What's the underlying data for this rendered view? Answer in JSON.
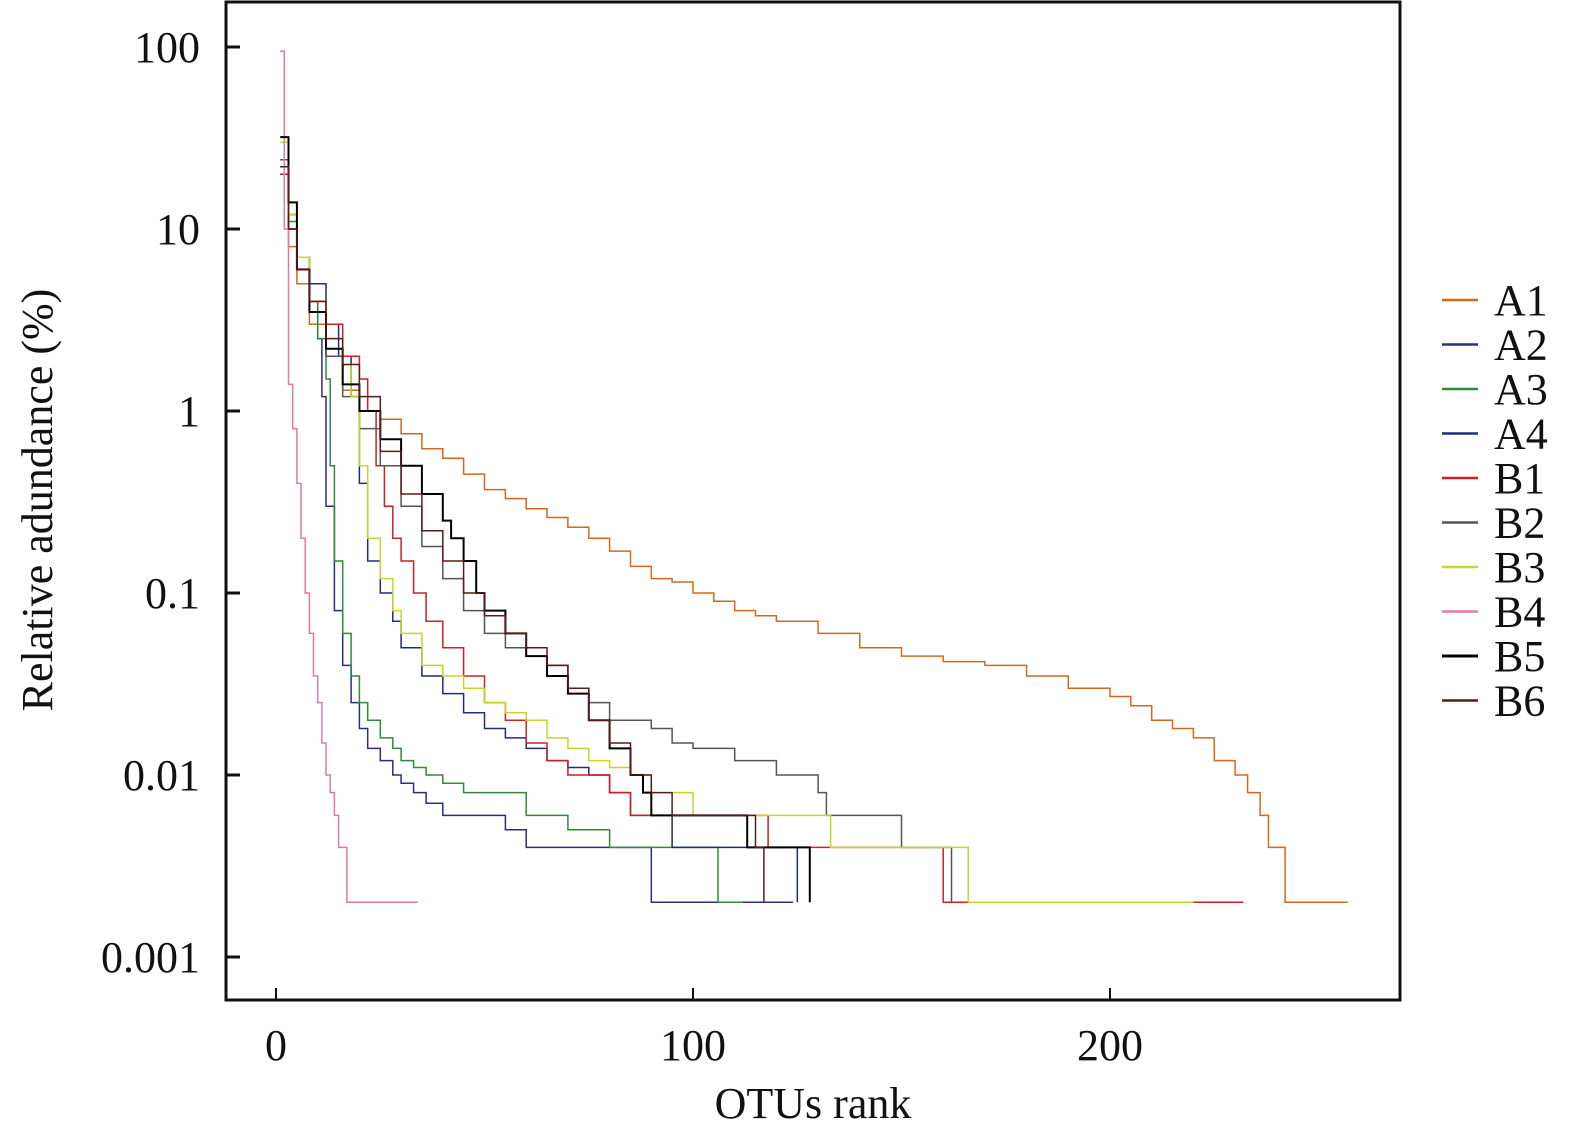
{
  "chart_data": {
    "type": "line",
    "title": "",
    "xlabel": "OTUs rank",
    "ylabel": "Relative adundance (%)",
    "xlim": [
      -12,
      270
    ],
    "ylim": [
      0.0005,
      180
    ],
    "yscale": "log",
    "xticks": [
      0,
      100,
      200
    ],
    "xtick_labels": [
      "0",
      "100",
      "200"
    ],
    "yticks": [
      100,
      10,
      1,
      0.1,
      0.01,
      0.001
    ],
    "ytick_labels": [
      "100",
      "10",
      "1",
      "0.1",
      "0.01",
      "0.001"
    ],
    "grid": false,
    "legend_position": "right",
    "step": true,
    "series": [
      {
        "name": "A1",
        "color": "#d2691e",
        "x": [
          1,
          3,
          5,
          8,
          12,
          16,
          20,
          25,
          30,
          35,
          40,
          45,
          50,
          55,
          60,
          65,
          70,
          75,
          80,
          85,
          90,
          95,
          100,
          105,
          110,
          115,
          120,
          130,
          140,
          150,
          160,
          170,
          180,
          190,
          200,
          205,
          210,
          215,
          220,
          225,
          230,
          233,
          236,
          238,
          240,
          242,
          257
        ],
        "y": [
          20,
          8,
          5,
          3,
          2,
          1.3,
          1.0,
          0.9,
          0.75,
          0.62,
          0.55,
          0.45,
          0.37,
          0.33,
          0.29,
          0.26,
          0.23,
          0.2,
          0.17,
          0.14,
          0.12,
          0.115,
          0.1,
          0.09,
          0.08,
          0.075,
          0.07,
          0.06,
          0.05,
          0.045,
          0.042,
          0.04,
          0.035,
          0.03,
          0.027,
          0.024,
          0.02,
          0.018,
          0.016,
          0.012,
          0.01,
          0.008,
          0.006,
          0.004,
          0.004,
          0.002,
          0.002
        ]
      },
      {
        "name": "A2",
        "color": "#2b2f7e",
        "x": [
          1,
          3,
          5,
          8,
          10,
          11,
          12,
          14,
          16,
          18,
          20,
          22,
          25,
          28,
          30,
          33,
          36,
          40,
          45,
          50,
          55,
          60,
          70,
          80,
          90,
          100,
          108,
          115,
          124
        ],
        "y": [
          22,
          10,
          6,
          4,
          2.5,
          1.2,
          0.3,
          0.08,
          0.04,
          0.025,
          0.018,
          0.014,
          0.012,
          0.01,
          0.009,
          0.008,
          0.007,
          0.006,
          0.006,
          0.006,
          0.005,
          0.004,
          0.004,
          0.004,
          0.002,
          0.002,
          0.002,
          0.002,
          0.002
        ]
      },
      {
        "name": "A3",
        "color": "#2e8b3a",
        "x": [
          1,
          3,
          5,
          8,
          10,
          12,
          13,
          14,
          16,
          18,
          20,
          22,
          25,
          28,
          30,
          33,
          36,
          40,
          45,
          50,
          55,
          60,
          65,
          70,
          80,
          90,
          100,
          106,
          112
        ],
        "y": [
          22,
          11,
          7,
          4,
          2.5,
          1.5,
          0.5,
          0.15,
          0.06,
          0.035,
          0.025,
          0.02,
          0.016,
          0.014,
          0.012,
          0.011,
          0.01,
          0.009,
          0.008,
          0.008,
          0.008,
          0.006,
          0.006,
          0.005,
          0.004,
          0.004,
          0.004,
          0.002,
          0.002
        ]
      },
      {
        "name": "A4",
        "color": "#1f2d7a",
        "x": [
          1,
          3,
          5,
          8,
          12,
          15,
          18,
          20,
          22,
          25,
          28,
          30,
          35,
          40,
          45,
          50,
          55,
          60,
          65,
          70,
          75,
          80,
          85,
          90,
          95,
          100,
          110,
          120,
          125
        ],
        "y": [
          20,
          12,
          7,
          5,
          3,
          2,
          1.2,
          0.4,
          0.15,
          0.1,
          0.07,
          0.05,
          0.035,
          0.028,
          0.022,
          0.018,
          0.016,
          0.014,
          0.012,
          0.011,
          0.01,
          0.008,
          0.006,
          0.006,
          0.004,
          0.004,
          0.004,
          0.004,
          0.002
        ]
      },
      {
        "name": "B1",
        "color": "#cc2027",
        "x": [
          1,
          3,
          5,
          8,
          12,
          16,
          20,
          22,
          24,
          26,
          28,
          30,
          33,
          36,
          40,
          45,
          50,
          55,
          60,
          65,
          70,
          75,
          80,
          85,
          90,
          100,
          110,
          118,
          150,
          160,
          200,
          232
        ],
        "y": [
          20,
          10,
          6,
          4,
          3,
          2,
          1.5,
          1.0,
          0.5,
          0.3,
          0.2,
          0.15,
          0.1,
          0.07,
          0.05,
          0.035,
          0.025,
          0.02,
          0.015,
          0.012,
          0.01,
          0.01,
          0.008,
          0.006,
          0.006,
          0.006,
          0.006,
          0.004,
          0.004,
          0.002,
          0.002,
          0.002
        ]
      },
      {
        "name": "B2",
        "color": "#555555",
        "x": [
          1,
          3,
          5,
          8,
          12,
          16,
          20,
          25,
          30,
          35,
          40,
          45,
          50,
          55,
          60,
          65,
          70,
          75,
          80,
          85,
          90,
          95,
          100,
          110,
          120,
          130,
          132,
          140,
          146,
          150,
          160,
          162
        ],
        "y": [
          24,
          12,
          6,
          3.5,
          2,
          1.2,
          0.8,
          0.5,
          0.3,
          0.18,
          0.12,
          0.08,
          0.06,
          0.05,
          0.045,
          0.04,
          0.03,
          0.025,
          0.02,
          0.02,
          0.018,
          0.015,
          0.014,
          0.012,
          0.01,
          0.008,
          0.006,
          0.006,
          0.006,
          0.004,
          0.004,
          0.002
        ]
      },
      {
        "name": "B3",
        "color": "#c8d42a",
        "x": [
          1,
          3,
          5,
          8,
          12,
          16,
          18,
          20,
          22,
          25,
          28,
          30,
          35,
          40,
          45,
          50,
          55,
          60,
          65,
          70,
          75,
          80,
          85,
          90,
          100,
          110,
          120,
          133,
          140,
          160,
          166,
          200,
          220
        ],
        "y": [
          30,
          12,
          7,
          4,
          2.5,
          1.8,
          1.2,
          0.5,
          0.2,
          0.12,
          0.08,
          0.06,
          0.04,
          0.035,
          0.03,
          0.025,
          0.022,
          0.02,
          0.016,
          0.014,
          0.012,
          0.011,
          0.01,
          0.008,
          0.006,
          0.006,
          0.006,
          0.004,
          0.004,
          0.004,
          0.002,
          0.002,
          0.002
        ]
      },
      {
        "name": "B4",
        "color": "#e07aa5",
        "x": [
          1,
          2,
          3,
          4,
          5,
          6,
          7,
          8,
          9,
          10,
          11,
          12,
          13,
          14,
          15,
          16,
          17,
          20,
          25,
          34
        ],
        "y": [
          95,
          10,
          1.4,
          0.8,
          0.4,
          0.2,
          0.1,
          0.06,
          0.035,
          0.025,
          0.015,
          0.01,
          0.008,
          0.006,
          0.004,
          0.004,
          0.002,
          0.002,
          0.002,
          0.002
        ]
      },
      {
        "name": "B5",
        "color": "#000000",
        "x": [
          1,
          3,
          5,
          8,
          12,
          16,
          20,
          25,
          30,
          35,
          40,
          42,
          45,
          48,
          50,
          55,
          60,
          65,
          70,
          75,
          80,
          85,
          88,
          90,
          95,
          100,
          105,
          110,
          113,
          120,
          125,
          128
        ],
        "y": [
          32,
          14,
          6,
          3.5,
          2.2,
          1.4,
          1.0,
          0.7,
          0.5,
          0.35,
          0.25,
          0.2,
          0.15,
          0.1,
          0.08,
          0.06,
          0.045,
          0.035,
          0.028,
          0.02,
          0.014,
          0.01,
          0.008,
          0.006,
          0.006,
          0.006,
          0.006,
          0.006,
          0.004,
          0.004,
          0.004,
          0.002
        ]
      },
      {
        "name": "B6",
        "color": "#5a1a1a",
        "x": [
          1,
          3,
          5,
          8,
          12,
          16,
          20,
          25,
          30,
          35,
          40,
          45,
          50,
          55,
          60,
          65,
          70,
          75,
          80,
          85,
          90,
          95,
          100,
          105,
          110,
          115,
          117
        ],
        "y": [
          22,
          10,
          6,
          4,
          2.5,
          1.8,
          1.2,
          0.6,
          0.35,
          0.22,
          0.15,
          0.1,
          0.075,
          0.06,
          0.05,
          0.04,
          0.03,
          0.02,
          0.015,
          0.01,
          0.008,
          0.006,
          0.006,
          0.006,
          0.006,
          0.004,
          0.002
        ]
      }
    ]
  }
}
